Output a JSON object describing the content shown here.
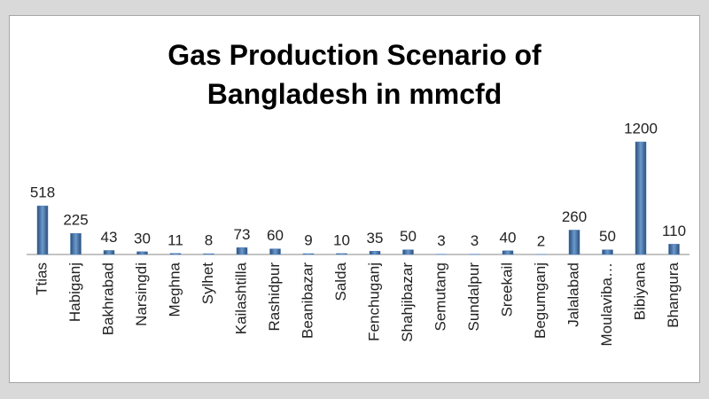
{
  "chart_data": {
    "type": "bar",
    "title": "Gas Production Scenario of Bangladesh in mmcfd",
    "categories": [
      "Ttias",
      "Habiganj",
      "Bakhrabad",
      "Narsingdi",
      "Meghna",
      "Sylhet",
      "Kailashtilla",
      "Rashidpur",
      "Beanibazar",
      "Salda",
      "Fenchuganj",
      "Shahjibazar",
      "Semutang",
      "Sundalpur",
      "Sreekail",
      "Begumganj",
      "Jalalabad",
      "Moulaviba…",
      "Bibiyana",
      "Bhangura"
    ],
    "values": [
      518,
      225,
      43,
      30,
      11,
      8,
      73,
      60,
      9,
      10,
      35,
      50,
      3,
      3,
      40,
      2,
      260,
      50,
      1200,
      110
    ],
    "color": "#4f81bd"
  }
}
